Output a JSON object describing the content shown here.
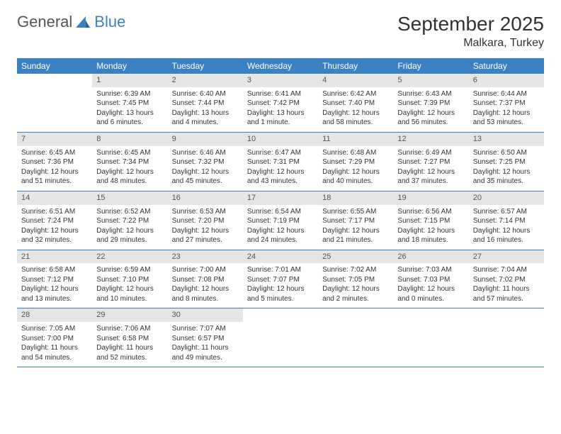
{
  "logo": {
    "text1": "General",
    "text2": "Blue"
  },
  "title": "September 2025",
  "location": "Malkara, Turkey",
  "colors": {
    "header_bg": "#3b82c4",
    "header_text": "#ffffff",
    "date_bar_bg": "#e5e5e5",
    "date_bar_text": "#555555",
    "body_text": "#333333",
    "border": "#3b82c4"
  },
  "day_names": [
    "Sunday",
    "Monday",
    "Tuesday",
    "Wednesday",
    "Thursday",
    "Friday",
    "Saturday"
  ],
  "start_offset": 1,
  "days": [
    {
      "n": 1,
      "sunrise": "6:39 AM",
      "sunset": "7:45 PM",
      "daylight": "13 hours and 6 minutes."
    },
    {
      "n": 2,
      "sunrise": "6:40 AM",
      "sunset": "7:44 PM",
      "daylight": "13 hours and 4 minutes."
    },
    {
      "n": 3,
      "sunrise": "6:41 AM",
      "sunset": "7:42 PM",
      "daylight": "13 hours and 1 minute."
    },
    {
      "n": 4,
      "sunrise": "6:42 AM",
      "sunset": "7:40 PM",
      "daylight": "12 hours and 58 minutes."
    },
    {
      "n": 5,
      "sunrise": "6:43 AM",
      "sunset": "7:39 PM",
      "daylight": "12 hours and 56 minutes."
    },
    {
      "n": 6,
      "sunrise": "6:44 AM",
      "sunset": "7:37 PM",
      "daylight": "12 hours and 53 minutes."
    },
    {
      "n": 7,
      "sunrise": "6:45 AM",
      "sunset": "7:36 PM",
      "daylight": "12 hours and 51 minutes."
    },
    {
      "n": 8,
      "sunrise": "6:45 AM",
      "sunset": "7:34 PM",
      "daylight": "12 hours and 48 minutes."
    },
    {
      "n": 9,
      "sunrise": "6:46 AM",
      "sunset": "7:32 PM",
      "daylight": "12 hours and 45 minutes."
    },
    {
      "n": 10,
      "sunrise": "6:47 AM",
      "sunset": "7:31 PM",
      "daylight": "12 hours and 43 minutes."
    },
    {
      "n": 11,
      "sunrise": "6:48 AM",
      "sunset": "7:29 PM",
      "daylight": "12 hours and 40 minutes."
    },
    {
      "n": 12,
      "sunrise": "6:49 AM",
      "sunset": "7:27 PM",
      "daylight": "12 hours and 37 minutes."
    },
    {
      "n": 13,
      "sunrise": "6:50 AM",
      "sunset": "7:25 PM",
      "daylight": "12 hours and 35 minutes."
    },
    {
      "n": 14,
      "sunrise": "6:51 AM",
      "sunset": "7:24 PM",
      "daylight": "12 hours and 32 minutes."
    },
    {
      "n": 15,
      "sunrise": "6:52 AM",
      "sunset": "7:22 PM",
      "daylight": "12 hours and 29 minutes."
    },
    {
      "n": 16,
      "sunrise": "6:53 AM",
      "sunset": "7:20 PM",
      "daylight": "12 hours and 27 minutes."
    },
    {
      "n": 17,
      "sunrise": "6:54 AM",
      "sunset": "7:19 PM",
      "daylight": "12 hours and 24 minutes."
    },
    {
      "n": 18,
      "sunrise": "6:55 AM",
      "sunset": "7:17 PM",
      "daylight": "12 hours and 21 minutes."
    },
    {
      "n": 19,
      "sunrise": "6:56 AM",
      "sunset": "7:15 PM",
      "daylight": "12 hours and 18 minutes."
    },
    {
      "n": 20,
      "sunrise": "6:57 AM",
      "sunset": "7:14 PM",
      "daylight": "12 hours and 16 minutes."
    },
    {
      "n": 21,
      "sunrise": "6:58 AM",
      "sunset": "7:12 PM",
      "daylight": "12 hours and 13 minutes."
    },
    {
      "n": 22,
      "sunrise": "6:59 AM",
      "sunset": "7:10 PM",
      "daylight": "12 hours and 10 minutes."
    },
    {
      "n": 23,
      "sunrise": "7:00 AM",
      "sunset": "7:08 PM",
      "daylight": "12 hours and 8 minutes."
    },
    {
      "n": 24,
      "sunrise": "7:01 AM",
      "sunset": "7:07 PM",
      "daylight": "12 hours and 5 minutes."
    },
    {
      "n": 25,
      "sunrise": "7:02 AM",
      "sunset": "7:05 PM",
      "daylight": "12 hours and 2 minutes."
    },
    {
      "n": 26,
      "sunrise": "7:03 AM",
      "sunset": "7:03 PM",
      "daylight": "12 hours and 0 minutes."
    },
    {
      "n": 27,
      "sunrise": "7:04 AM",
      "sunset": "7:02 PM",
      "daylight": "11 hours and 57 minutes."
    },
    {
      "n": 28,
      "sunrise": "7:05 AM",
      "sunset": "7:00 PM",
      "daylight": "11 hours and 54 minutes."
    },
    {
      "n": 29,
      "sunrise": "7:06 AM",
      "sunset": "6:58 PM",
      "daylight": "11 hours and 52 minutes."
    },
    {
      "n": 30,
      "sunrise": "7:07 AM",
      "sunset": "6:57 PM",
      "daylight": "11 hours and 49 minutes."
    }
  ],
  "labels": {
    "sunrise": "Sunrise:",
    "sunset": "Sunset:",
    "daylight": "Daylight:"
  }
}
